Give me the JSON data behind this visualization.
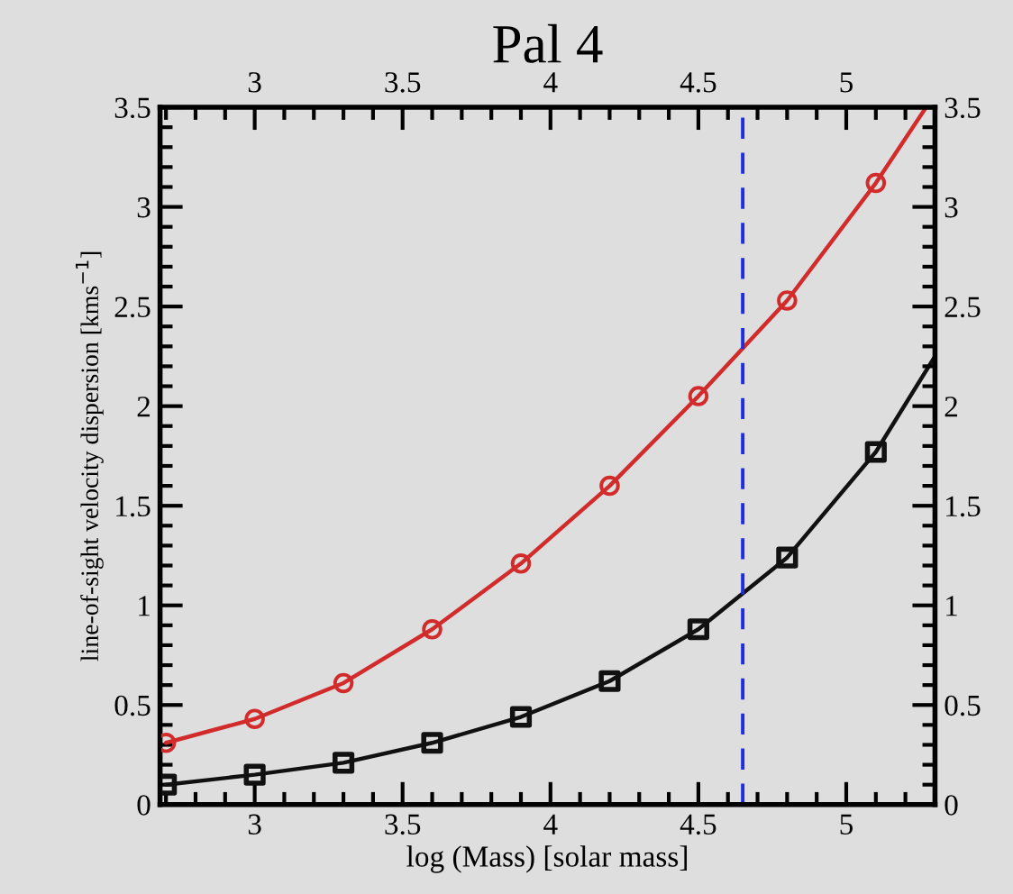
{
  "chart_data": {
    "type": "line",
    "title": "Pal 4",
    "xlabel": "log (Mass) [solar mass]",
    "ylabel": "line-of-sight velocity dispersion [kms$^{−1}$]",
    "xlim": [
      2.68,
      5.3
    ],
    "ylim": [
      0,
      3.5
    ],
    "xticks": [
      3,
      3.5,
      4,
      4.5,
      5
    ],
    "yticks": [
      0,
      0.5,
      1,
      1.5,
      2,
      2.5,
      3,
      3.5
    ],
    "x2lim": [
      2.68,
      5.3
    ],
    "x2ticks": [
      3,
      3.5,
      4,
      4.5,
      5
    ],
    "y2lim": [
      0,
      3.5
    ],
    "y2ticks": [
      0,
      0.5,
      1,
      1.5,
      2,
      2.5,
      3,
      3.5
    ],
    "grid": false,
    "series": [
      {
        "color": "#d22b2b",
        "marker": "none",
        "x": [
          2.7,
          3.0,
          3.3,
          3.6,
          3.9,
          4.2,
          4.5,
          4.8,
          5.1,
          5.27
        ],
        "values": [
          0.31,
          0.43,
          0.61,
          0.88,
          1.21,
          1.6,
          2.05,
          2.53,
          3.12,
          3.5
        ]
      },
      {
        "type": "scatter",
        "color": "#d22b2b",
        "marker": "circle",
        "x": [
          2.7,
          3.0,
          3.3,
          3.6,
          3.9,
          4.2,
          4.5,
          4.8,
          5.1
        ],
        "values": [
          0.31,
          0.43,
          0.61,
          0.88,
          1.21,
          1.6,
          2.05,
          2.53,
          3.12
        ]
      },
      {
        "color": "#111111",
        "marker": "none",
        "x": [
          2.7,
          3.0,
          3.3,
          3.6,
          3.9,
          4.2,
          4.5,
          4.8,
          5.1,
          5.3
        ],
        "values": [
          0.1,
          0.15,
          0.21,
          0.31,
          0.44,
          0.62,
          0.88,
          1.24,
          1.77,
          2.25
        ]
      },
      {
        "type": "scatter",
        "color": "#111111",
        "marker": "square",
        "x": [
          2.7,
          3.0,
          3.3,
          3.6,
          3.9,
          4.2,
          4.5,
          4.8,
          5.1
        ],
        "values": [
          0.1,
          0.15,
          0.21,
          0.31,
          0.44,
          0.62,
          0.88,
          1.24,
          1.77
        ]
      }
    ],
    "ref_lines": [
      {
        "axis": "x",
        "value": 4.65,
        "color": "#1f2fe0",
        "line_style": "dashed"
      }
    ]
  }
}
